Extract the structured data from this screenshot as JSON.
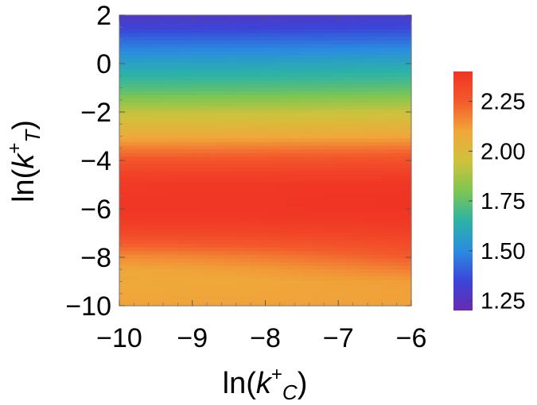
{
  "chart_data": {
    "type": "heatmap",
    "xlabel_main": "ln(",
    "xlabel_var": "k",
    "xlabel_sup": "+",
    "xlabel_sub": "C",
    "xlabel_close": ")",
    "ylabel_main": "ln(",
    "ylabel_var": "k",
    "ylabel_sup": "+",
    "ylabel_sub": "T",
    "ylabel_close": ")",
    "xlim": [
      -10,
      -6
    ],
    "ylim": [
      -10,
      2
    ],
    "x_ticks": [
      "−10",
      "−9",
      "−8",
      "−7",
      "−6"
    ],
    "y_ticks": [
      "2",
      "0",
      "−2",
      "−4",
      "−6",
      "−8",
      "−10"
    ],
    "x_tick_values": [
      -10,
      -9,
      -8,
      -7,
      -6
    ],
    "y_tick_values": [
      2,
      0,
      -2,
      -4,
      -6,
      -8,
      -10
    ],
    "colorbar": {
      "range": [
        1.2,
        2.4
      ],
      "tick_values": [
        2.25,
        2.0,
        1.75,
        1.5,
        1.25
      ],
      "tick_labels": [
        "2.25",
        "2.00",
        "1.75",
        "1.50",
        "1.25"
      ]
    },
    "colormap": [
      "#6a2ab0",
      "#3a46d8",
      "#2a8ce0",
      "#2cb3a6",
      "#7dc652",
      "#cfc23c",
      "#f0a73a",
      "#f35a2c",
      "#f03424"
    ],
    "z_by_row": {
      "y": [
        2,
        1.5,
        1,
        0.5,
        0,
        -0.5,
        -1,
        -1.5,
        -2,
        -2.5,
        -3,
        -3.5,
        -4,
        -4.5,
        -5,
        -5.5,
        -6,
        -6.5,
        -7,
        -7.5,
        -8,
        -8.5,
        -9,
        -9.5,
        -10
      ],
      "z_left": [
        1.28,
        1.33,
        1.42,
        1.5,
        1.58,
        1.65,
        1.72,
        1.82,
        1.92,
        2.0,
        2.08,
        2.18,
        2.27,
        2.34,
        2.38,
        2.39,
        2.39,
        2.37,
        2.32,
        2.24,
        2.15,
        2.1,
        2.09,
        2.1,
        2.11
      ],
      "z_right": [
        1.3,
        1.35,
        1.43,
        1.52,
        1.6,
        1.67,
        1.74,
        1.84,
        1.94,
        2.02,
        2.1,
        2.2,
        2.29,
        2.35,
        2.39,
        2.4,
        2.4,
        2.38,
        2.35,
        2.3,
        2.25,
        2.18,
        2.12,
        2.11,
        2.11
      ]
    }
  }
}
